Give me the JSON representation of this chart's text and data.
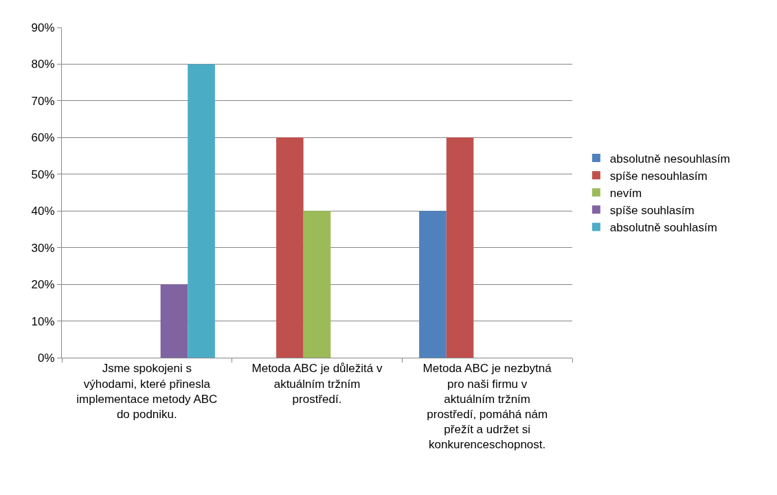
{
  "chart_data": {
    "type": "bar",
    "categories": [
      "Jsme spokojeni s výhodami, které přinesla implementace metody ABC do podniku.",
      "Metoda ABC je důležitá v aktuálním tržním prostředí.",
      "Metoda ABC je nezbytná pro naši firmu v aktuálním tržním prostředí, pomáhá nám přežít a udržet si konkurenceschopnost."
    ],
    "series": [
      {
        "name": "absolutně nesouhlasím",
        "color": "#4f81bd",
        "values": [
          0,
          0,
          40
        ]
      },
      {
        "name": "spíše nesouhlasím",
        "color": "#c0504d",
        "values": [
          0,
          60,
          60
        ]
      },
      {
        "name": "nevím",
        "color": "#9bbb59",
        "values": [
          0,
          40,
          0
        ]
      },
      {
        "name": "spíše souhlasím",
        "color": "#8064a2",
        "values": [
          20,
          0,
          0
        ]
      },
      {
        "name": "absolutně souhlasím",
        "color": "#4bacc6",
        "values": [
          80,
          0,
          0
        ]
      }
    ],
    "ylim": [
      0,
      90
    ],
    "yticks": [
      {
        "value": 0,
        "label": "0%"
      },
      {
        "value": 10,
        "label": "10%"
      },
      {
        "value": 20,
        "label": "20%"
      },
      {
        "value": 30,
        "label": "30%"
      },
      {
        "value": 40,
        "label": "40%"
      },
      {
        "value": 50,
        "label": "50%"
      },
      {
        "value": 60,
        "label": "60%"
      },
      {
        "value": 70,
        "label": "70%"
      },
      {
        "value": 80,
        "label": "80%"
      },
      {
        "value": 90,
        "label": "90%"
      }
    ],
    "grid": "y",
    "legend": "right"
  }
}
